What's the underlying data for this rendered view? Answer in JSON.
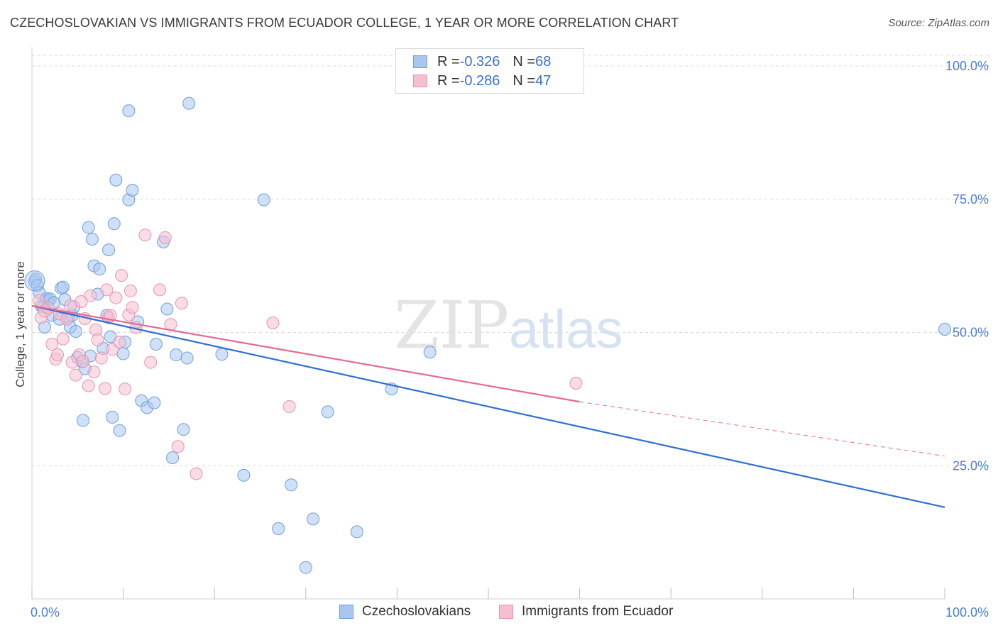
{
  "header": {
    "title": "CZECHOSLOVAKIAN VS IMMIGRANTS FROM ECUADOR COLLEGE, 1 YEAR OR MORE CORRELATION CHART",
    "source": "Source: ZipAtlas.com"
  },
  "watermark": {
    "zip": "ZIP",
    "atlas": "atlas"
  },
  "legend": {
    "rows": [
      {
        "r_label": "R = ",
        "r_value": "-0.326",
        "n_label": "N = ",
        "n_value": "68"
      },
      {
        "r_label": "R = ",
        "r_value": "-0.286",
        "n_label": "N = ",
        "n_value": "47"
      }
    ]
  },
  "bottom_legend": [
    "Czechoslovakians",
    "Immigrants from Ecuador"
  ],
  "colors": {
    "blue_fill": "#a9c6ee",
    "blue_stroke": "#6d9ee0",
    "blue_line": "#2f6fd0",
    "pink_fill": "#f5bfd0",
    "pink_stroke": "#e993b0",
    "pink_line": "#e36a95",
    "grid": "#d9d9d9",
    "tick_text": "#4a7fd0"
  },
  "chart_data": {
    "type": "scatter",
    "title": "CZECHOSLOVAKIAN VS IMMIGRANTS FROM ECUADOR COLLEGE, 1 YEAR OR MORE CORRELATION CHART",
    "xlabel": "",
    "ylabel": "College, 1 year or more",
    "xlim": [
      0,
      100
    ],
    "ylim": [
      0,
      102
    ],
    "x_tick_labels": [
      "0.0%",
      "100.0%"
    ],
    "y_ticks": [
      25,
      50,
      75,
      100
    ],
    "y_tick_labels": [
      "25.0%",
      "50.0%",
      "75.0%",
      "100.0%"
    ],
    "grid": true,
    "legend_position": "top-center",
    "series": [
      {
        "name": "Czechoslovakians",
        "r": -0.326,
        "n": 68,
        "trend": {
          "x": [
            0,
            100
          ],
          "y": [
            55.0,
            17.2
          ]
        },
        "points": [
          [
            0.3,
            59.5
          ],
          [
            0.4,
            60.0
          ],
          [
            0.6,
            58.8
          ],
          [
            0.8,
            57.5
          ],
          [
            1.0,
            55.0
          ],
          [
            1.2,
            54.8
          ],
          [
            1.4,
            51.0
          ],
          [
            1.6,
            56.4
          ],
          [
            1.8,
            56.0
          ],
          [
            2.0,
            56.3
          ],
          [
            2.2,
            53.2
          ],
          [
            2.4,
            55.6
          ],
          [
            3.0,
            52.5
          ],
          [
            3.2,
            58.3
          ],
          [
            3.4,
            58.5
          ],
          [
            3.6,
            56.2
          ],
          [
            4.0,
            52.8
          ],
          [
            4.2,
            51.0
          ],
          [
            4.4,
            53.2
          ],
          [
            4.6,
            54.8
          ],
          [
            4.8,
            50.2
          ],
          [
            5.0,
            45.3
          ],
          [
            5.5,
            44.5
          ],
          [
            5.8,
            43.2
          ],
          [
            5.6,
            33.5
          ],
          [
            6.2,
            69.7
          ],
          [
            6.4,
            45.6
          ],
          [
            6.6,
            67.5
          ],
          [
            6.8,
            62.5
          ],
          [
            7.2,
            57.2
          ],
          [
            7.4,
            61.9
          ],
          [
            7.8,
            47.0
          ],
          [
            8.2,
            53.2
          ],
          [
            8.4,
            65.5
          ],
          [
            8.6,
            49.2
          ],
          [
            8.8,
            34.1
          ],
          [
            9.0,
            70.4
          ],
          [
            9.2,
            78.6
          ],
          [
            9.6,
            31.6
          ],
          [
            10.0,
            46.0
          ],
          [
            10.2,
            48.2
          ],
          [
            10.6,
            74.9
          ],
          [
            10.6,
            91.6
          ],
          [
            11.0,
            76.7
          ],
          [
            11.6,
            52.0
          ],
          [
            12.0,
            37.2
          ],
          [
            12.6,
            35.9
          ],
          [
            13.4,
            36.8
          ],
          [
            13.6,
            47.8
          ],
          [
            14.4,
            67.0
          ],
          [
            14.8,
            54.4
          ],
          [
            15.4,
            26.5
          ],
          [
            15.8,
            45.8
          ],
          [
            16.6,
            31.8
          ],
          [
            17.0,
            45.2
          ],
          [
            17.2,
            93.0
          ],
          [
            20.8,
            45.9
          ],
          [
            23.2,
            23.2
          ],
          [
            25.4,
            74.9
          ],
          [
            27.0,
            13.2
          ],
          [
            28.4,
            21.4
          ],
          [
            30.0,
            5.9
          ],
          [
            30.8,
            15.0
          ],
          [
            32.4,
            35.1
          ],
          [
            35.6,
            12.6
          ],
          [
            39.4,
            39.4
          ],
          [
            43.6,
            46.3
          ],
          [
            100.0,
            50.6
          ]
        ]
      },
      {
        "name": "Immigrants from Ecuador",
        "r": -0.286,
        "n": 47,
        "trend": {
          "x": [
            0,
            60,
            100
          ],
          "y": [
            55.0,
            37.0,
            26.8
          ]
        },
        "points": [
          [
            0.8,
            56.0
          ],
          [
            1.0,
            52.8
          ],
          [
            1.4,
            54.0
          ],
          [
            1.8,
            54.6
          ],
          [
            2.2,
            47.8
          ],
          [
            2.6,
            45.0
          ],
          [
            2.8,
            45.8
          ],
          [
            3.0,
            53.5
          ],
          [
            3.4,
            48.8
          ],
          [
            3.8,
            52.5
          ],
          [
            4.2,
            55.0
          ],
          [
            4.4,
            44.4
          ],
          [
            4.8,
            42.0
          ],
          [
            5.2,
            45.8
          ],
          [
            5.6,
            44.6
          ],
          [
            5.8,
            52.6
          ],
          [
            6.2,
            40.0
          ],
          [
            6.4,
            56.9
          ],
          [
            6.8,
            42.6
          ],
          [
            7.0,
            50.5
          ],
          [
            7.2,
            48.6
          ],
          [
            7.6,
            45.2
          ],
          [
            8.0,
            39.5
          ],
          [
            8.2,
            58.0
          ],
          [
            8.4,
            52.8
          ],
          [
            8.6,
            53.2
          ],
          [
            8.8,
            46.8
          ],
          [
            9.2,
            56.5
          ],
          [
            9.6,
            48.2
          ],
          [
            9.8,
            60.7
          ],
          [
            10.2,
            39.4
          ],
          [
            10.6,
            53.3
          ],
          [
            10.8,
            57.8
          ],
          [
            11.0,
            54.7
          ],
          [
            11.4,
            50.9
          ],
          [
            12.4,
            68.3
          ],
          [
            13.0,
            44.4
          ],
          [
            14.0,
            58.0
          ],
          [
            14.6,
            67.8
          ],
          [
            15.2,
            51.5
          ],
          [
            16.0,
            28.6
          ],
          [
            16.4,
            55.5
          ],
          [
            18.0,
            23.5
          ],
          [
            26.4,
            51.8
          ],
          [
            28.2,
            36.1
          ],
          [
            59.6,
            40.5
          ],
          [
            5.4,
            55.8
          ]
        ]
      }
    ]
  }
}
